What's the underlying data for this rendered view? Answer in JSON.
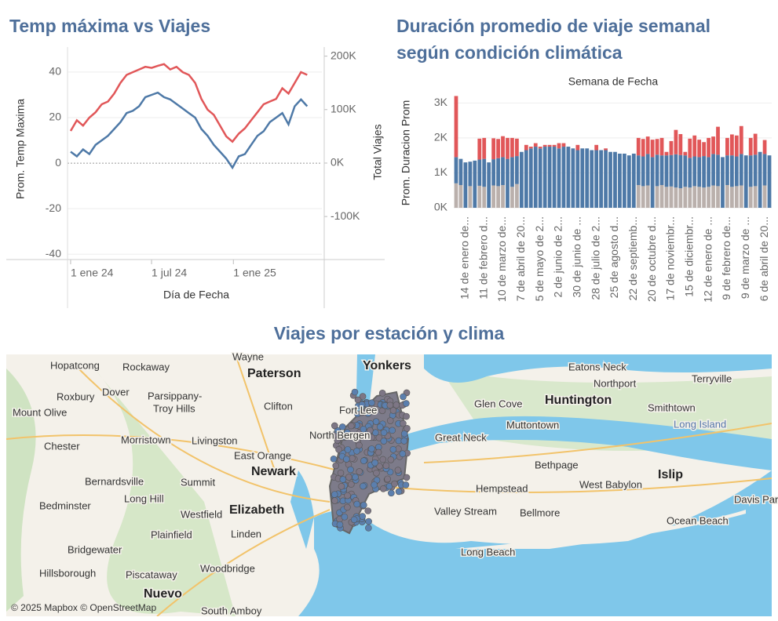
{
  "chart_data": [
    {
      "type": "line",
      "title": "Temp máxima vs Viajes",
      "xlabel": "Día de Fecha",
      "ylabel": "Prom. Temp Maxima",
      "y2label": "Total Viajes",
      "x": [
        "2024-01-01",
        "2024-01-15",
        "2024-01-29",
        "2024-02-12",
        "2024-02-26",
        "2024-03-11",
        "2024-03-25",
        "2024-04-08",
        "2024-04-22",
        "2024-05-06",
        "2024-05-20",
        "2024-06-03",
        "2024-06-17",
        "2024-07-01",
        "2024-07-15",
        "2024-07-29",
        "2024-08-12",
        "2024-08-26",
        "2024-09-09",
        "2024-09-23",
        "2024-10-07",
        "2024-10-21",
        "2024-11-04",
        "2024-11-18",
        "2024-12-02",
        "2024-12-16",
        "2024-12-30",
        "2025-01-13",
        "2025-01-27",
        "2025-02-10",
        "2025-02-24",
        "2025-03-10",
        "2025-03-24",
        "2025-04-07",
        "2025-04-21",
        "2025-05-05",
        "2025-05-19",
        "2025-06-02",
        "2025-06-16"
      ],
      "series": [
        {
          "color": "#4e79a7",
          "values": [
            5,
            3,
            6,
            4,
            8,
            10,
            12,
            15,
            18,
            22,
            23,
            25,
            29,
            30,
            31,
            29,
            28,
            26,
            24,
            22,
            20,
            15,
            12,
            8,
            5,
            2,
            -2,
            3,
            4,
            8,
            12,
            14,
            18,
            20,
            22,
            17,
            25,
            28,
            25
          ]
        },
        {
          "color": "#e15759",
          "axis": "y2",
          "values": [
            60000,
            80000,
            70000,
            85000,
            95000,
            110000,
            115000,
            130000,
            150000,
            165000,
            170000,
            175000,
            180000,
            178000,
            182000,
            185000,
            175000,
            180000,
            170000,
            165000,
            150000,
            120000,
            100000,
            90000,
            70000,
            50000,
            40000,
            55000,
            65000,
            80000,
            95000,
            110000,
            115000,
            120000,
            140000,
            130000,
            150000,
            170000,
            165000
          ]
        }
      ],
      "xlim": [
        "2023-12-25",
        "2025-07-19"
      ],
      "xticks": [
        {
          "value": "2024-01-01",
          "label": "1 ene 24"
        },
        {
          "value": "2024-07-01",
          "label": "1 jul 24"
        },
        {
          "value": "2025-01-01",
          "label": "1 ene 25"
        }
      ],
      "ylim": [
        -42,
        51
      ],
      "yticks": [
        -40,
        -20,
        0,
        20,
        40
      ],
      "y2lim": [
        -179000,
        217000
      ],
      "y2ticks": [
        {
          "value": -100000,
          "label": "-100K"
        },
        {
          "value": 0,
          "label": "0K"
        },
        {
          "value": 100000,
          "label": "100K"
        },
        {
          "value": 200000,
          "label": "200K"
        }
      ],
      "grid": true
    },
    {
      "type": "stacked_bar",
      "title": "Duración promedio de viaje semanal según condición climática",
      "xlabel": "Semana de Fecha",
      "ylabel": "Prom. Duracion Prom",
      "categories": [
        null,
        null,
        "14 de enero de...",
        null,
        null,
        null,
        "11 de febrero d...",
        null,
        null,
        null,
        "10 de marzo de...",
        null,
        null,
        null,
        "7 de abril de 20...",
        null,
        null,
        null,
        "5 de mayo de 2...",
        null,
        null,
        null,
        "2 de junio de 2...",
        null,
        null,
        null,
        "30 de junio de ...",
        null,
        null,
        null,
        "28 de julio de 2...",
        null,
        null,
        null,
        "25 de agosto d...",
        null,
        null,
        null,
        "22 de septiemb...",
        null,
        null,
        null,
        "20 de octubre d...",
        null,
        null,
        null,
        "17 de noviembr...",
        null,
        null,
        null,
        "15 de diciembr...",
        null,
        null,
        null,
        "12 de enero de ...",
        null,
        null,
        null,
        "9 de febrero de...",
        null,
        null,
        null,
        "9 de marzo de ...",
        null,
        null,
        null,
        "6 de abril de 20...",
        null
      ],
      "series": [
        {
          "color": "#bab0ac",
          "values": [
            700,
            650,
            null,
            620,
            null,
            630,
            600,
            null,
            640,
            620,
            650,
            null,
            600,
            680,
            null,
            null,
            null,
            null,
            null,
            null,
            null,
            null,
            null,
            null,
            null,
            null,
            null,
            null,
            null,
            null,
            null,
            null,
            null,
            null,
            null,
            null,
            null,
            null,
            null,
            650,
            620,
            640,
            null,
            620,
            650,
            600,
            610,
            580,
            560,
            600,
            580,
            620,
            600,
            580,
            600,
            640,
            620,
            null,
            650,
            600,
            620,
            640,
            null,
            600,
            620,
            null,
            640,
            null
          ]
        },
        {
          "color": "#4e79a7",
          "values": [
            750,
            750,
            1300,
            700,
            1350,
            750,
            800,
            1300,
            750,
            800,
            800,
            1400,
            850,
            800,
            1600,
            1650,
            1700,
            1750,
            1700,
            1750,
            1750,
            1750,
            1700,
            1750,
            1750,
            1700,
            1650,
            1700,
            1700,
            1650,
            1650,
            1650,
            1650,
            1600,
            1600,
            1550,
            1550,
            1500,
            1550,
            850,
            850,
            900,
            1450,
            900,
            850,
            900,
            900,
            950,
            950,
            900,
            850,
            850,
            850,
            900,
            850,
            900,
            900,
            1450,
            850,
            900,
            850,
            900,
            1500,
            900,
            900,
            1600,
            900,
            1500
          ]
        },
        {
          "color": "#e15759",
          "values": [
            1750,
            null,
            null,
            null,
            null,
            600,
            600,
            null,
            600,
            550,
            600,
            600,
            550,
            500,
            null,
            150,
            50,
            100,
            50,
            50,
            50,
            50,
            150,
            100,
            null,
            null,
            150,
            null,
            null,
            null,
            150,
            null,
            50,
            null,
            null,
            null,
            null,
            null,
            null,
            500,
            500,
            500,
            500,
            450,
            500,
            100,
            400,
            700,
            600,
            100,
            550,
            600,
            500,
            400,
            550,
            500,
            800,
            null,
            500,
            600,
            600,
            800,
            null,
            500,
            600,
            null,
            400,
            null
          ]
        }
      ],
      "ylim": [
        0,
        3300
      ],
      "yticks": [
        {
          "value": 0,
          "label": "0K"
        },
        {
          "value": 1000,
          "label": "1K"
        },
        {
          "value": 2000,
          "label": "2K"
        },
        {
          "value": 3000,
          "label": "3K"
        }
      ],
      "grid": true
    }
  ],
  "map": {
    "title": "Viajes por estación y clima",
    "labels": [
      "Wayne",
      "Yonkers",
      "Hopatcong",
      "Rockaway",
      "Paterson",
      "Dover",
      "Parsippany-",
      "Troy Hills",
      "Roxbury",
      "Mount Olive",
      "Clifton",
      "Fort Lee",
      "Eatons Neck",
      "Northport",
      "Terryville",
      "Huntington",
      "Glen Cove",
      "Smithtown",
      "Muttontown",
      "Great Neck",
      "Long Island",
      "North Bergen",
      "Morristown",
      "Livingston",
      "Chester",
      "East Orange",
      "Newark",
      "Bernardsville",
      "Summit",
      "Bethpage",
      "Islip",
      "Long Hill",
      "Hempstead",
      "West Babylon",
      "Davis Park",
      "Bedminster",
      "Westfield",
      "Elizabeth",
      "Valley Stream",
      "Bellmore",
      "Ocean Beach",
      "Plainfield",
      "Linden",
      "Bridgewater",
      "Long Beach",
      "Woodbridge",
      "Hillsborough",
      "Piscataway",
      "Nuevo",
      "South Amboy"
    ],
    "attribution": "© 2025 Mapbox © OpenStreetMap"
  }
}
